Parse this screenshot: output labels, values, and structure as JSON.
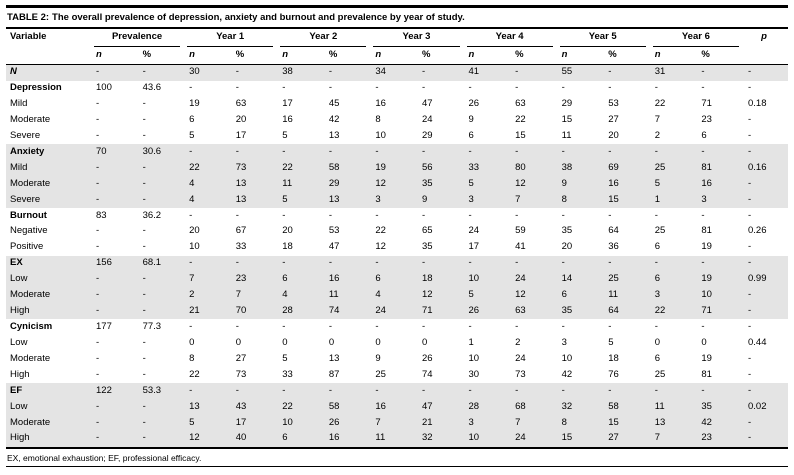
{
  "colors": {
    "row_band": "#e4e4e4"
  },
  "table": {
    "title_label": "TABLE 2:",
    "title_text": "The overall prevalence of depression, anxiety and burnout and prevalence by year of study.",
    "col_groups": [
      {
        "label": "Variable",
        "span": 1
      },
      {
        "label": "Prevalence",
        "span": 2
      },
      {
        "label": "Year 1",
        "span": 2
      },
      {
        "label": "Year 2",
        "span": 2
      },
      {
        "label": "Year 3",
        "span": 2
      },
      {
        "label": "Year 4",
        "span": 2
      },
      {
        "label": "Year 5",
        "span": 2
      },
      {
        "label": "Year 6",
        "span": 2
      },
      {
        "label": "p",
        "span": 1
      }
    ],
    "subheaders": [
      "n",
      "%",
      "n",
      "%",
      "n",
      "%",
      "n",
      "%",
      "n",
      "%",
      "n",
      "%",
      "n",
      "%"
    ],
    "rows": [
      {
        "label": "N",
        "bold": true,
        "italic": true,
        "shaded": true,
        "cells": [
          "-",
          "-",
          "30",
          "-",
          "38",
          "-",
          "34",
          "-",
          "41",
          "-",
          "55",
          "-",
          "31",
          "-",
          "-"
        ]
      },
      {
        "label": "Depression",
        "bold": true,
        "italic": false,
        "shaded": false,
        "cells": [
          "100",
          "43.6",
          "-",
          "-",
          "-",
          "-",
          "-",
          "-",
          "-",
          "-",
          "-",
          "-",
          "-",
          "-",
          "-"
        ]
      },
      {
        "label": "Mild",
        "bold": false,
        "italic": false,
        "shaded": false,
        "cells": [
          "-",
          "-",
          "19",
          "63",
          "17",
          "45",
          "16",
          "47",
          "26",
          "63",
          "29",
          "53",
          "22",
          "71",
          "0.18"
        ]
      },
      {
        "label": "Moderate",
        "bold": false,
        "italic": false,
        "shaded": false,
        "cells": [
          "-",
          "-",
          "6",
          "20",
          "16",
          "42",
          "8",
          "24",
          "9",
          "22",
          "15",
          "27",
          "7",
          "23",
          "-"
        ]
      },
      {
        "label": "Severe",
        "bold": false,
        "italic": false,
        "shaded": false,
        "cells": [
          "-",
          "-",
          "5",
          "17",
          "5",
          "13",
          "10",
          "29",
          "6",
          "15",
          "11",
          "20",
          "2",
          "6",
          "-"
        ]
      },
      {
        "label": "Anxiety",
        "bold": true,
        "italic": false,
        "shaded": true,
        "cells": [
          "70",
          "30.6",
          "-",
          "-",
          "-",
          "-",
          "-",
          "-",
          "-",
          "-",
          "-",
          "-",
          "-",
          "-",
          "-"
        ]
      },
      {
        "label": "Mild",
        "bold": false,
        "italic": false,
        "shaded": true,
        "cells": [
          "-",
          "-",
          "22",
          "73",
          "22",
          "58",
          "19",
          "56",
          "33",
          "80",
          "38",
          "69",
          "25",
          "81",
          "0.16"
        ]
      },
      {
        "label": "Moderate",
        "bold": false,
        "italic": false,
        "shaded": true,
        "cells": [
          "-",
          "-",
          "4",
          "13",
          "11",
          "29",
          "12",
          "35",
          "5",
          "12",
          "9",
          "16",
          "5",
          "16",
          "-"
        ]
      },
      {
        "label": "Severe",
        "bold": false,
        "italic": false,
        "shaded": true,
        "cells": [
          "-",
          "-",
          "4",
          "13",
          "5",
          "13",
          "3",
          "9",
          "3",
          "7",
          "8",
          "15",
          "1",
          "3",
          "-"
        ]
      },
      {
        "label": "Burnout",
        "bold": true,
        "italic": false,
        "shaded": false,
        "cells": [
          "83",
          "36.2",
          "-",
          "-",
          "-",
          "-",
          "-",
          "-",
          "-",
          "-",
          "-",
          "-",
          "-",
          "-",
          "-"
        ]
      },
      {
        "label": "Negative",
        "bold": false,
        "italic": false,
        "shaded": false,
        "cells": [
          "-",
          "-",
          "20",
          "67",
          "20",
          "53",
          "22",
          "65",
          "24",
          "59",
          "35",
          "64",
          "25",
          "81",
          "0.26"
        ]
      },
      {
        "label": "Positive",
        "bold": false,
        "italic": false,
        "shaded": false,
        "cells": [
          "-",
          "-",
          "10",
          "33",
          "18",
          "47",
          "12",
          "35",
          "17",
          "41",
          "20",
          "36",
          "6",
          "19",
          "-"
        ]
      },
      {
        "label": "EX",
        "bold": true,
        "italic": false,
        "shaded": true,
        "cells": [
          "156",
          "68.1",
          "-",
          "-",
          "-",
          "-",
          "-",
          "-",
          "-",
          "-",
          "-",
          "-",
          "-",
          "-",
          "-"
        ]
      },
      {
        "label": "Low",
        "bold": false,
        "italic": false,
        "shaded": true,
        "cells": [
          "-",
          "-",
          "7",
          "23",
          "6",
          "16",
          "6",
          "18",
          "10",
          "24",
          "14",
          "25",
          "6",
          "19",
          "0.99"
        ]
      },
      {
        "label": "Moderate",
        "bold": false,
        "italic": false,
        "shaded": true,
        "cells": [
          "-",
          "-",
          "2",
          "7",
          "4",
          "11",
          "4",
          "12",
          "5",
          "12",
          "6",
          "11",
          "3",
          "10",
          "-"
        ]
      },
      {
        "label": "High",
        "bold": false,
        "italic": false,
        "shaded": true,
        "cells": [
          "-",
          "-",
          "21",
          "70",
          "28",
          "74",
          "24",
          "71",
          "26",
          "63",
          "35",
          "64",
          "22",
          "71",
          "-"
        ]
      },
      {
        "label": "Cynicism",
        "bold": true,
        "italic": false,
        "shaded": false,
        "cells": [
          "177",
          "77.3",
          "-",
          "-",
          "-",
          "-",
          "-",
          "-",
          "-",
          "-",
          "-",
          "-",
          "-",
          "-",
          "-"
        ]
      },
      {
        "label": "Low",
        "bold": false,
        "italic": false,
        "shaded": false,
        "cells": [
          "-",
          "-",
          "0",
          "0",
          "0",
          "0",
          "0",
          "0",
          "1",
          "2",
          "3",
          "5",
          "0",
          "0",
          "0.44"
        ]
      },
      {
        "label": "Moderate",
        "bold": false,
        "italic": false,
        "shaded": false,
        "cells": [
          "-",
          "-",
          "8",
          "27",
          "5",
          "13",
          "9",
          "26",
          "10",
          "24",
          "10",
          "18",
          "6",
          "19",
          "-"
        ]
      },
      {
        "label": "High",
        "bold": false,
        "italic": false,
        "shaded": false,
        "cells": [
          "-",
          "-",
          "22",
          "73",
          "33",
          "87",
          "25",
          "74",
          "30",
          "73",
          "42",
          "76",
          "25",
          "81",
          "-"
        ]
      },
      {
        "label": "EF",
        "bold": true,
        "italic": false,
        "shaded": true,
        "cells": [
          "122",
          "53.3",
          "-",
          "-",
          "-",
          "-",
          "-",
          "-",
          "-",
          "-",
          "-",
          "-",
          "-",
          "-",
          "-"
        ]
      },
      {
        "label": "Low",
        "bold": false,
        "italic": false,
        "shaded": true,
        "cells": [
          "-",
          "-",
          "13",
          "43",
          "22",
          "58",
          "16",
          "47",
          "28",
          "68",
          "32",
          "58",
          "11",
          "35",
          "0.02"
        ]
      },
      {
        "label": "Moderate",
        "bold": false,
        "italic": false,
        "shaded": true,
        "cells": [
          "-",
          "-",
          "5",
          "17",
          "10",
          "26",
          "7",
          "21",
          "3",
          "7",
          "8",
          "15",
          "13",
          "42",
          "-"
        ]
      },
      {
        "label": "High",
        "bold": false,
        "italic": false,
        "shaded": true,
        "cells": [
          "-",
          "-",
          "12",
          "40",
          "6",
          "16",
          "11",
          "32",
          "10",
          "24",
          "15",
          "27",
          "7",
          "23",
          "-"
        ]
      }
    ],
    "footnote": "EX, emotional exhaustion; EF, professional efficacy."
  }
}
